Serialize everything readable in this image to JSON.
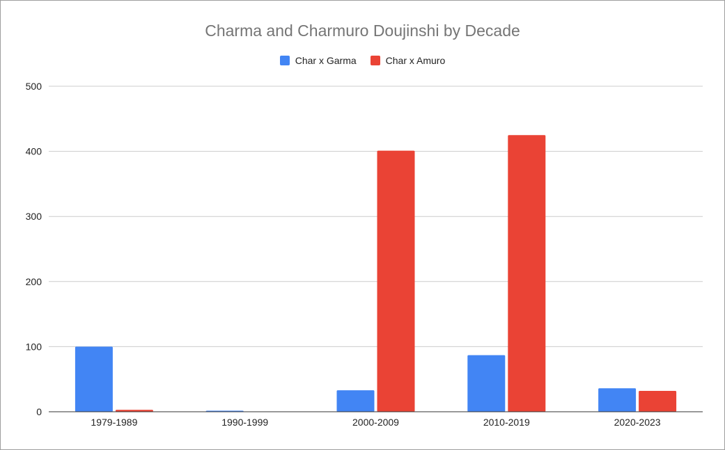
{
  "chart_data": {
    "type": "bar",
    "title": "Charma and Charmuro Doujinshi by Decade",
    "xlabel": "",
    "ylabel": "",
    "categories": [
      "1979-1989",
      "1990-1999",
      "2000-2009",
      "2010-2019",
      "2020-2023"
    ],
    "series": [
      {
        "name": "Char x Garma",
        "color": "#4285f4",
        "values": [
          100,
          1,
          33,
          87,
          36
        ]
      },
      {
        "name": "Char x Amuro",
        "color": "#ea4335",
        "values": [
          3,
          0,
          401,
          425,
          32
        ]
      }
    ],
    "ylim": [
      0,
      500
    ],
    "yticks": [
      0,
      100,
      200,
      300,
      400,
      500
    ],
    "grid": true,
    "legend_position": "top"
  }
}
